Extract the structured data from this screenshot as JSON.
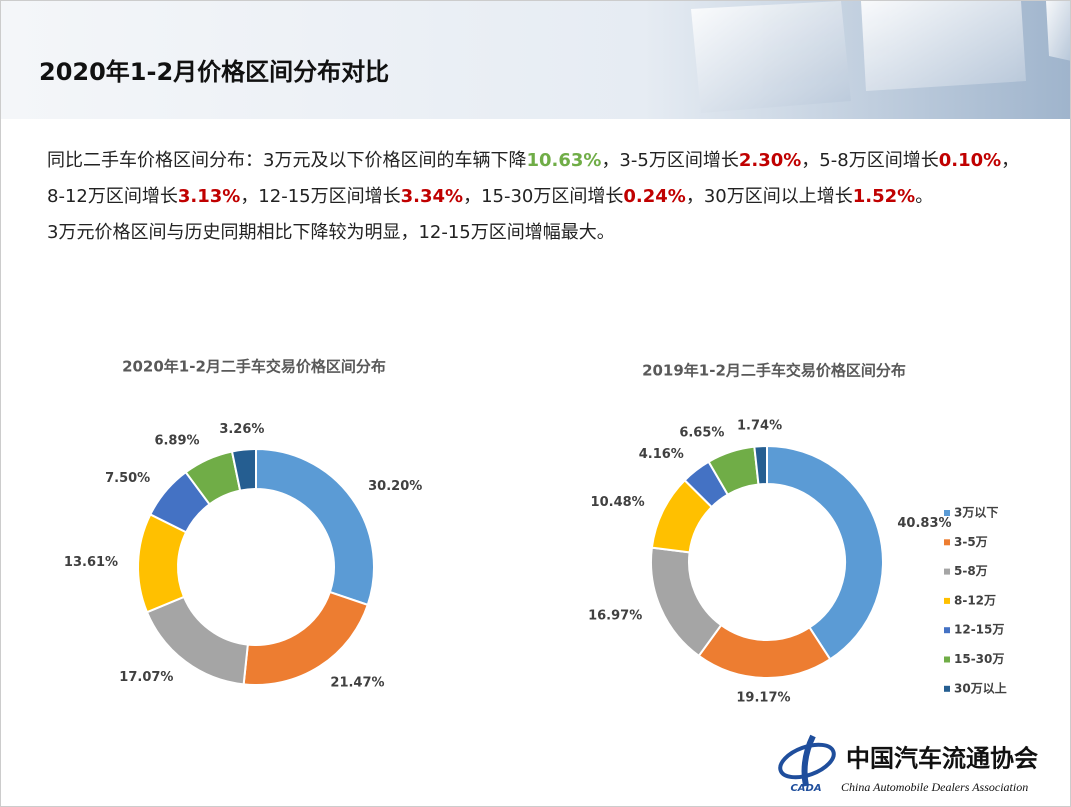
{
  "header": {
    "title": "2020年1-2月价格区间分布对比"
  },
  "body": {
    "paragraph_1": [
      {
        "text": "同比二手车价格区间分布：3万元及以下价格区间的车辆下降"
      },
      {
        "text": "10.63%",
        "color": "#70ad47"
      },
      {
        "text": "，3-5万区间增长"
      },
      {
        "text": "2.30%",
        "color": "#c00000"
      },
      {
        "text": "，5-8万区间增长"
      },
      {
        "text": "0.10%",
        "color": "#c00000"
      },
      {
        "text": "，8-12万区间增长"
      },
      {
        "text": "3.13%",
        "color": "#c00000"
      },
      {
        "text": "，12-15万区间增长"
      },
      {
        "text": "3.34%",
        "color": "#c00000"
      },
      {
        "text": "，15-30万区间增长"
      },
      {
        "text": "0.24%",
        "color": "#c00000"
      },
      {
        "text": "，30万区间以上增长"
      },
      {
        "text": "1.52%",
        "color": "#c00000"
      },
      {
        "text": "。"
      }
    ],
    "paragraph_2": "3万元价格区间与历史同期相比下降较为明显，12-15万区间增幅最大。"
  },
  "chart_data": [
    {
      "type": "donut",
      "title": "2020年1-2月二手车交易价格区间分布",
      "values": [
        30.2,
        21.47,
        17.07,
        13.61,
        7.5,
        6.89,
        3.26
      ],
      "value_labels": [
        "30.20%",
        "21.47%",
        "17.07%",
        "13.61%",
        "7.50%",
        "6.89%",
        "3.26%"
      ],
      "colors": [
        "#5b9bd5",
        "#ed7d31",
        "#a5a5a5",
        "#ffc000",
        "#4472c4",
        "#70ad47",
        "#255e91"
      ]
    },
    {
      "type": "donut",
      "title": "2019年1-2月二手车交易价格区间分布",
      "categories": [
        "3万以下",
        "3-5万",
        "5-8万",
        "8-12万",
        "12-15万",
        "15-30万",
        "30万以上"
      ],
      "values": [
        40.83,
        19.17,
        16.97,
        10.48,
        4.16,
        6.65,
        1.74
      ],
      "value_labels": [
        "40.83%",
        "19.17%",
        "16.97%",
        "10.48%",
        "4.16%",
        "6.65%",
        "1.74%"
      ],
      "colors": [
        "#5b9bd5",
        "#ed7d31",
        "#a5a5a5",
        "#ffc000",
        "#4472c4",
        "#70ad47",
        "#255e91"
      ],
      "legend": "right"
    }
  ],
  "logo": {
    "name": "中国汽车流通协会",
    "english": "China Automobile Dealers Association",
    "mark": "CADA"
  }
}
